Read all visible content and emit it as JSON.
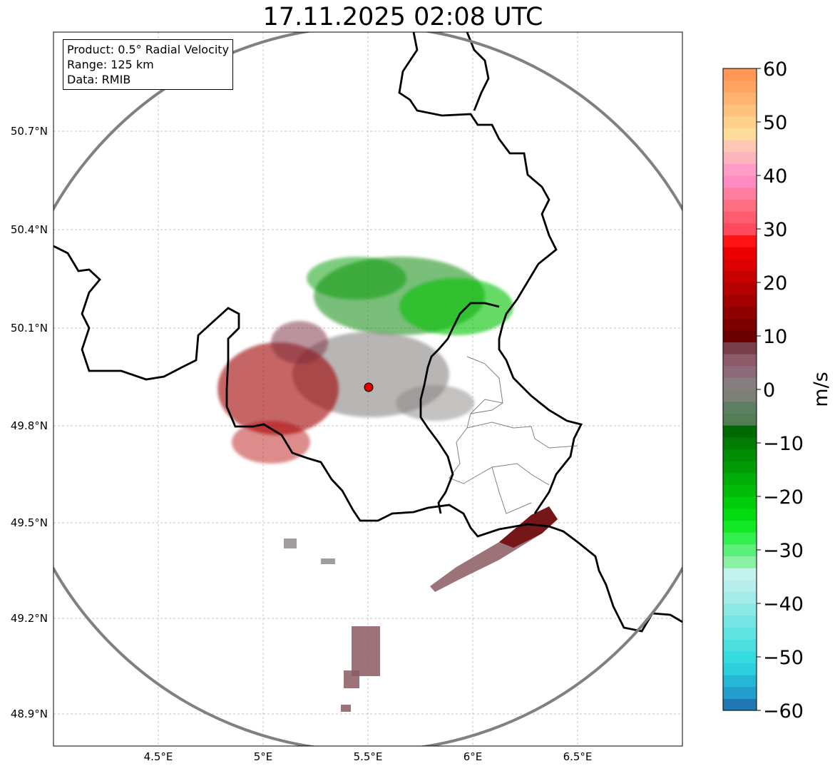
{
  "title": "17.11.2025 02:08 UTC",
  "info": {
    "product": "Product: 0.5° Radial Velocity",
    "range": "Range: 125 km",
    "data": "Data: RMIB"
  },
  "axes": {
    "lon_ticks": [
      "4.5°E",
      "5°E",
      "5.5°E",
      "6°E",
      "6.5°E"
    ],
    "lat_ticks": [
      "50.7°N",
      "50.4°N",
      "50.1°N",
      "49.8°N",
      "49.5°N",
      "49.2°N",
      "48.9°N"
    ]
  },
  "colorbar": {
    "label": "m/s",
    "min": -60,
    "max": 60,
    "ticks": [
      "60",
      "50",
      "40",
      "30",
      "20",
      "10",
      "0",
      "−10",
      "−20",
      "−30",
      "−40",
      "−50",
      "−60"
    ],
    "colors": [
      "#1f77b4",
      "#229fcc",
      "#26b6d6",
      "#2bd0dc",
      "#36dbe0",
      "#4bdfe0",
      "#60e3e1",
      "#74e6e3",
      "#8be9e6",
      "#a4ece9",
      "#b6eeec",
      "#c4f2ee",
      "#8af0a4",
      "#5cf07a",
      "#33ee4f",
      "#12e823",
      "#00dc0e",
      "#00cc0a",
      "#00bc08",
      "#00ac07",
      "#009b05",
      "#008c04",
      "#007c03",
      "#006a02",
      "#557d55",
      "#5f7f62",
      "#7d8077",
      "#867d80",
      "#8b6b79",
      "#8c5a68",
      "#7a3e4a",
      "#6b0000",
      "#7d0000",
      "#900000",
      "#a20000",
      "#b50000",
      "#c80000",
      "#dc0000",
      "#ee0000",
      "#ff1414",
      "#ff4a5e",
      "#ff5c70",
      "#ff6f82",
      "#ff7fa0",
      "#ff8bc2",
      "#ff9dc6",
      "#ffb3bd",
      "#ffc7b4",
      "#ffdc9c",
      "#ffd08a",
      "#ffc27e",
      "#ffb36f",
      "#ffa462",
      "#ff9955"
    ]
  },
  "radar_site": {
    "name": "radar-site",
    "lon": 5.505,
    "lat": 49.914
  },
  "colors": {
    "approaching_green": "#00b400",
    "receding_red": "#b40000",
    "near_zero_gray": "#7d7d7d",
    "border": "#000000",
    "range_ring": "#808080",
    "site": "#e00000"
  }
}
